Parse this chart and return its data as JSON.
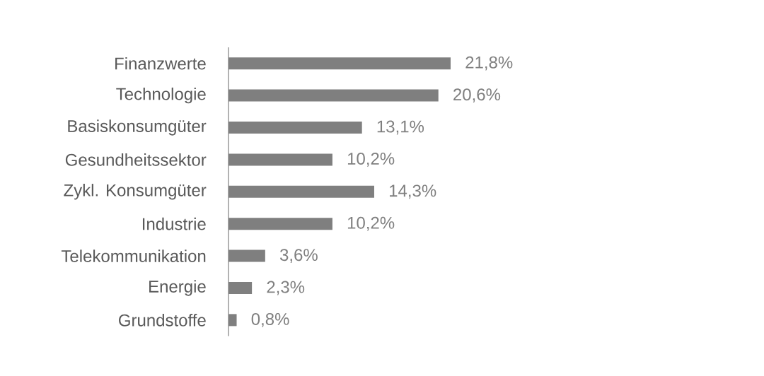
{
  "chart_data": {
    "type": "bar",
    "orientation": "horizontal",
    "categories": [
      "Finanzwerte",
      "Technologie",
      "Basiskonsumgüter",
      "Gesundheitssektor",
      "Zykl. Konsumgüter",
      "Industrie",
      "Telekommunikation",
      "Energie",
      "Grundstoffe"
    ],
    "values": [
      21.8,
      20.6,
      13.1,
      10.2,
      14.3,
      10.2,
      3.6,
      2.3,
      0.8
    ],
    "value_labels": [
      "21,8%",
      "20,6%",
      "13,1%",
      "10,2%",
      "14,3%",
      "10,2%",
      "3,6%",
      "2,3%",
      "0,8%"
    ],
    "color": "#7f7f7f"
  }
}
